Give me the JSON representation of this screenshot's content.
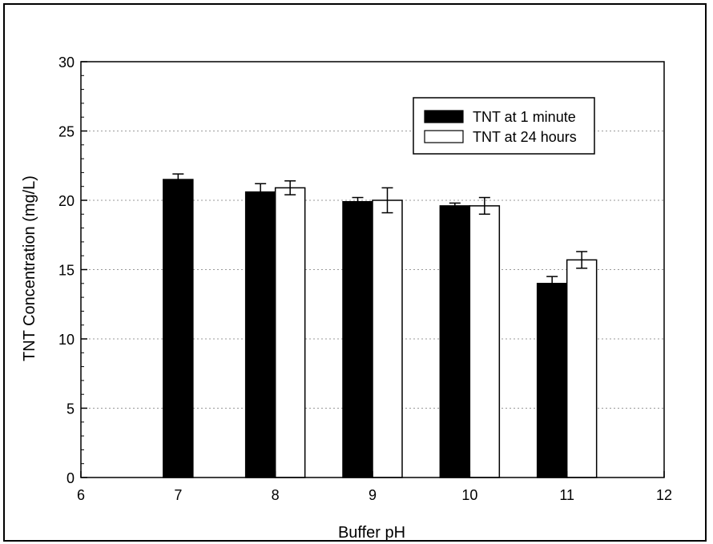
{
  "chart_data": {
    "type": "bar",
    "title": "",
    "xlabel": "Buffer pH",
    "ylabel": "TNT Concentration (mg/L)",
    "xlim": [
      6,
      12
    ],
    "ylim": [
      0,
      30
    ],
    "x_ticks": [
      6,
      7,
      8,
      9,
      10,
      11,
      12
    ],
    "y_ticks": [
      0,
      5,
      10,
      15,
      20,
      25,
      30
    ],
    "grid": true,
    "legend_position": "top-right",
    "series": [
      {
        "name": "TNT at 1 minute",
        "color": "#000000",
        "x": [
          7,
          8,
          9,
          10,
          11
        ],
        "values": [
          21.5,
          20.6,
          19.9,
          19.6,
          14.0
        ],
        "errors": [
          0.4,
          0.6,
          0.3,
          0.2,
          0.5
        ]
      },
      {
        "name": "TNT at 24 hours",
        "color": "#ffffff",
        "x": [
          8,
          9,
          10,
          11
        ],
        "values": [
          20.9,
          20.0,
          19.6,
          15.7
        ],
        "errors": [
          0.5,
          0.9,
          0.6,
          0.6
        ]
      }
    ]
  }
}
